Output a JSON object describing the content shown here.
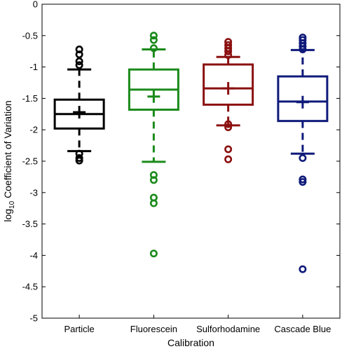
{
  "chart_data": {
    "type": "box",
    "xlabel": "Calibration",
    "ylabel_main": "log",
    "ylabel_sub": "10",
    "ylabel_rest": " Coefficient of Variation",
    "ylim": [
      -5,
      0
    ],
    "yticks": [
      0,
      -0.5,
      -1,
      -1.5,
      -2,
      -2.5,
      -3,
      -3.5,
      -4,
      -4.5,
      -5
    ],
    "ytick_labels": [
      "0",
      "-0.5",
      "-1",
      "-1.5",
      "-2",
      "-2.5",
      "-3",
      "-3.5",
      "-4",
      "-4.5",
      "-5"
    ],
    "grid": false,
    "categories": [
      "Particle",
      "Fluorescein",
      "Sulforhodamine",
      "Cascade Blue"
    ],
    "series": [
      {
        "color": "#000000",
        "whisker_low": -2.34,
        "q1": -1.98,
        "median": -1.75,
        "q3": -1.52,
        "whisker_high": -1.04,
        "mean": -1.72,
        "outliers": [
          -0.72,
          -0.8,
          -0.91,
          -0.97,
          -2.38,
          -2.45,
          -2.49
        ]
      },
      {
        "color": "#1a8a1a",
        "whisker_low": -2.51,
        "q1": -1.68,
        "median": -1.36,
        "q3": -1.04,
        "whisker_high": -0.72,
        "mean": -1.47,
        "outliers": [
          -0.5,
          -0.57,
          -0.7,
          -2.72,
          -2.8,
          -3.08,
          -3.17,
          -3.97
        ]
      },
      {
        "color": "#8b1010",
        "whisker_low": -1.93,
        "q1": -1.6,
        "median": -1.34,
        "q3": -0.96,
        "whisker_high": -0.84,
        "mean": -1.34,
        "outliers": [
          -0.6,
          -0.65,
          -0.7,
          -0.75,
          -0.81,
          -1.91,
          -1.96,
          -2.31,
          -2.47
        ]
      },
      {
        "color": "#0f1a7a",
        "whisker_low": -2.38,
        "q1": -1.86,
        "median": -1.55,
        "q3": -1.15,
        "whisker_high": -0.73,
        "mean": -1.56,
        "outliers": [
          -0.53,
          -0.57,
          -0.62,
          -0.67,
          -0.72,
          -2.45,
          -2.79,
          -2.83,
          -4.22
        ]
      }
    ]
  }
}
